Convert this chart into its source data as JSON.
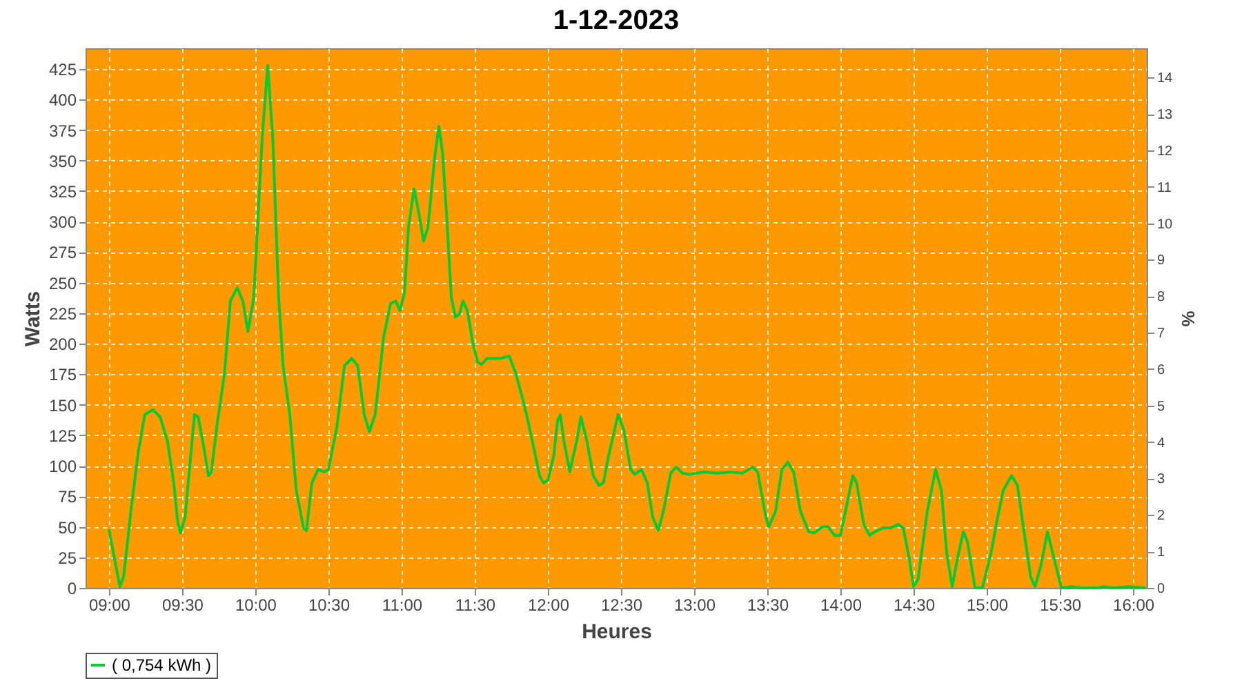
{
  "chart_data": {
    "type": "line",
    "title": "1-12-2023",
    "xlabel": "Heures",
    "ylabel": "Watts",
    "y2label": "%",
    "x": [
      9.0,
      9.047,
      9.075,
      9.1,
      9.15,
      9.2,
      9.245,
      9.3,
      9.35,
      9.4,
      9.443,
      9.47,
      9.49,
      9.52,
      9.585,
      9.61,
      9.65,
      9.68,
      9.7,
      9.736,
      9.79,
      9.83,
      9.877,
      9.915,
      9.95,
      9.99,
      10.047,
      10.085,
      10.12,
      10.16,
      10.19,
      10.236,
      10.28,
      10.33,
      10.35,
      10.387,
      10.43,
      10.47,
      10.5,
      10.557,
      10.61,
      10.66,
      10.7,
      10.745,
      10.78,
      10.82,
      10.877,
      10.925,
      10.96,
      10.99,
      11.02,
      11.047,
      11.085,
      11.12,
      11.15,
      11.18,
      11.226,
      11.255,
      11.28,
      11.31,
      11.34,
      11.368,
      11.395,
      11.42,
      11.45,
      11.49,
      11.52,
      11.547,
      11.585,
      11.63,
      11.68,
      11.736,
      11.78,
      11.83,
      11.86,
      11.905,
      11.943,
      11.97,
      12.0,
      12.04,
      12.066,
      12.085,
      12.11,
      12.15,
      12.2,
      12.226,
      12.264,
      12.31,
      12.35,
      12.38,
      12.415,
      12.48,
      12.52,
      12.566,
      12.594,
      12.64,
      12.68,
      12.717,
      12.755,
      12.79,
      12.84,
      12.877,
      12.92,
      12.97,
      13.066,
      13.16,
      13.25,
      13.33,
      13.4,
      13.434,
      13.49,
      13.51,
      13.557,
      13.6,
      13.64,
      13.68,
      13.726,
      13.783,
      13.82,
      13.877,
      13.915,
      13.96,
      14.0,
      14.04,
      14.085,
      14.11,
      14.16,
      14.2,
      14.236,
      14.29,
      14.34,
      14.396,
      14.43,
      14.47,
      14.5,
      14.53,
      14.594,
      14.65,
      14.69,
      14.726,
      14.764,
      14.8,
      14.84,
      14.868,
      14.92,
      14.97,
      15.03,
      15.075,
      15.113,
      15.17,
      15.21,
      15.255,
      15.3,
      15.33,
      15.37,
      15.415,
      15.45,
      15.51,
      15.585,
      15.63,
      15.755,
      15.8,
      15.86,
      15.97,
      16.085
    ],
    "series": [
      {
        "name": "( 0,754 kWh )",
        "color": "#00cc33",
        "values": [
          48,
          18,
          1,
          9,
          63,
          111,
          142,
          146,
          140,
          120,
          86,
          54,
          45,
          58,
          142,
          140,
          114,
          92,
          95,
          131,
          176,
          235,
          246,
          235,
          210,
          238,
          368,
          428,
          368,
          238,
          182,
          142,
          80,
          49,
          47,
          86,
          97,
          95,
          97,
          131,
          182,
          188,
          182,
          142,
          128,
          142,
          205,
          233,
          235,
          227,
          242,
          295,
          327,
          306,
          284,
          295,
          352,
          378,
          357,
          301,
          238,
          222,
          224,
          235,
          227,
          199,
          185,
          183,
          188,
          188,
          188,
          190,
          176,
          154,
          139,
          114,
          92,
          86,
          88,
          108,
          137,
          142,
          120,
          95,
          122,
          140,
          122,
          92,
          84,
          86,
          108,
          142,
          129,
          97,
          93,
          97,
          86,
          58,
          47,
          63,
          94,
          99,
          94,
          93,
          95,
          94,
          95,
          94,
          99,
          95,
          58,
          50,
          63,
          97,
          103,
          95,
          63,
          46,
          45,
          50,
          50,
          43,
          43,
          66,
          92,
          86,
          52,
          43,
          46,
          49,
          49,
          52,
          49,
          24,
          1,
          7,
          63,
          97,
          80,
          29,
          1,
          24,
          46,
          38,
          0,
          0,
          29,
          58,
          80,
          92,
          84,
          46,
          9,
          1,
          18,
          46,
          29,
          0,
          1,
          0,
          0,
          1,
          0,
          1,
          0
        ]
      }
    ],
    "xlim": [
      8.84,
      16.094
    ],
    "xticks": [
      {
        "value": 9,
        "label": "09:00"
      },
      {
        "value": 9.5,
        "label": "09:30"
      },
      {
        "value": 10,
        "label": "10:00"
      },
      {
        "value": 10.5,
        "label": "10:30"
      },
      {
        "value": 11,
        "label": "11:00"
      },
      {
        "value": 11.5,
        "label": "11:30"
      },
      {
        "value": 12,
        "label": "12:00"
      },
      {
        "value": 12.5,
        "label": "12:30"
      },
      {
        "value": 13,
        "label": "13:00"
      },
      {
        "value": 13.5,
        "label": "13:30"
      },
      {
        "value": 14,
        "label": "14:00"
      },
      {
        "value": 14.5,
        "label": "14:30"
      },
      {
        "value": 15,
        "label": "15:00"
      },
      {
        "value": 15.5,
        "label": "15:30"
      },
      {
        "value": 16,
        "label": "16:00"
      }
    ],
    "ylim": [
      0,
      442
    ],
    "yticks": [
      0,
      25,
      50,
      75,
      100,
      125,
      150,
      175,
      200,
      225,
      250,
      275,
      300,
      325,
      350,
      375,
      400,
      425
    ],
    "y2lim": [
      0,
      14.8
    ],
    "y2ticks": [
      0,
      1,
      2,
      3,
      4,
      5,
      6,
      7,
      8,
      9,
      10,
      11,
      12,
      13,
      14
    ],
    "grid": true,
    "legend": "bottom",
    "line_style": "solid"
  }
}
